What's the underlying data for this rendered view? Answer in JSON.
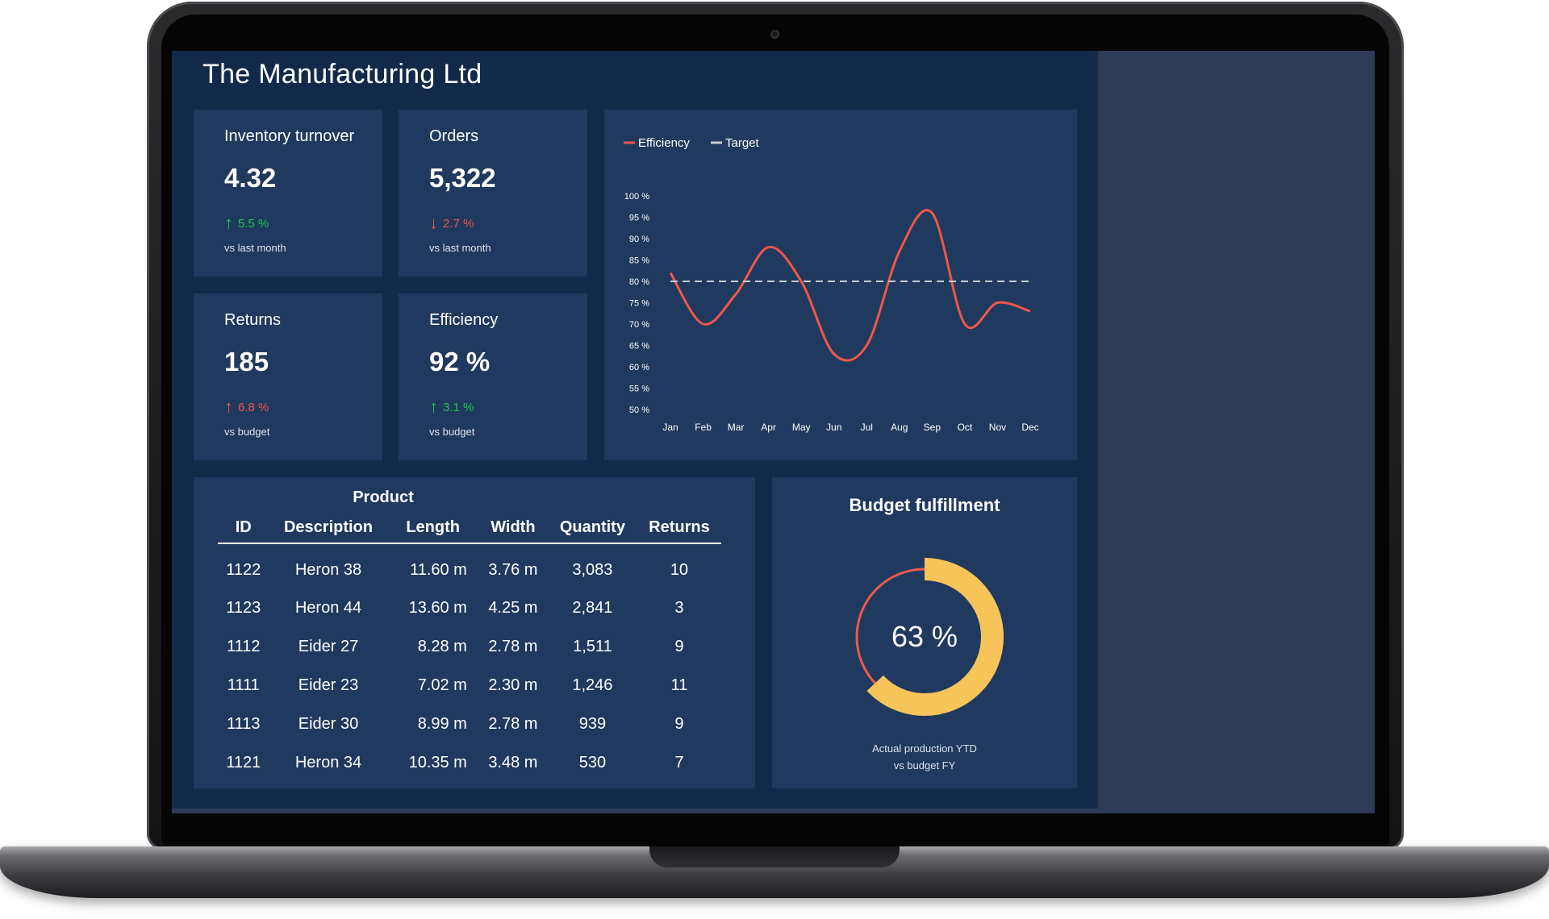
{
  "app": {
    "title": "The Manufacturing Ltd"
  },
  "kpis": [
    {
      "title": "Inventory turnover",
      "value": "4.32",
      "change": "5.5 %",
      "direction": "up",
      "status": "good",
      "comparison": "vs last month"
    },
    {
      "title": "Orders",
      "value": "5,322",
      "change": "2.7 %",
      "direction": "down",
      "status": "bad",
      "comparison": "vs last month"
    },
    {
      "title": "Returns",
      "value": "185",
      "change": "6.8 %",
      "direction": "up",
      "status": "bad",
      "comparison": "vs budget"
    },
    {
      "title": "Efficiency",
      "value": "92 %",
      "change": "3.1 %",
      "direction": "up",
      "status": "good",
      "comparison": "vs budget"
    }
  ],
  "colors": {
    "background": "#112a4a",
    "card": "#1f3a5e",
    "efficiency_line": "#f0564a",
    "target_line": "#c8ccd4",
    "good": "#22c24c",
    "bad": "#f05050",
    "gauge_fill": "#f7c45a",
    "gauge_remaining": "#ec5a4c"
  },
  "chart_data": {
    "type": "line",
    "categories": [
      "Jan",
      "Feb",
      "Mar",
      "Apr",
      "May",
      "Jun",
      "Jul",
      "Aug",
      "Sep",
      "Oct",
      "Nov",
      "Dec"
    ],
    "series": [
      {
        "name": "Efficiency",
        "values": [
          82,
          70,
          77,
          88,
          80,
          63,
          65,
          87,
          96,
          70,
          75,
          73
        ],
        "color": "#f0564a",
        "style": "solid"
      },
      {
        "name": "Target",
        "values": [
          80,
          80,
          80,
          80,
          80,
          80,
          80,
          80,
          80,
          80,
          80,
          80
        ],
        "color": "#c8ccd4",
        "style": "dashed"
      }
    ],
    "yticks": [
      "100 %",
      "95 %",
      "90 %",
      "85 %",
      "80 %",
      "75 %",
      "70 %",
      "65 %",
      "60 %",
      "55 %",
      "50 %"
    ],
    "ylim": [
      50,
      100
    ],
    "grid": false,
    "legend_position": "top-left"
  },
  "product_table": {
    "title": "Product",
    "columns": [
      "ID",
      "Description",
      "Length",
      "Width",
      "Quantity",
      "Returns"
    ],
    "rows": [
      [
        "1122",
        "Heron 38",
        "11.60 m",
        "3.76 m",
        "3,083",
        "10"
      ],
      [
        "1123",
        "Heron 44",
        "13.60 m",
        "4.25 m",
        "2,841",
        "3"
      ],
      [
        "1112",
        "Eider 27",
        "8.28 m",
        "2.78 m",
        "1,511",
        "9"
      ],
      [
        "1111",
        "Eider 23",
        "7.02 m",
        "2.30 m",
        "1,246",
        "11"
      ],
      [
        "1113",
        "Eider 30",
        "8.99 m",
        "2.78 m",
        "939",
        "9"
      ],
      [
        "1121",
        "Heron 34",
        "10.35 m",
        "3.48 m",
        "530",
        "7"
      ]
    ]
  },
  "budget": {
    "title": "Budget fulfillment",
    "percent": 63,
    "label": "63 %",
    "subtitle_line1": "Actual production YTD",
    "subtitle_line2": "vs budget FY"
  }
}
